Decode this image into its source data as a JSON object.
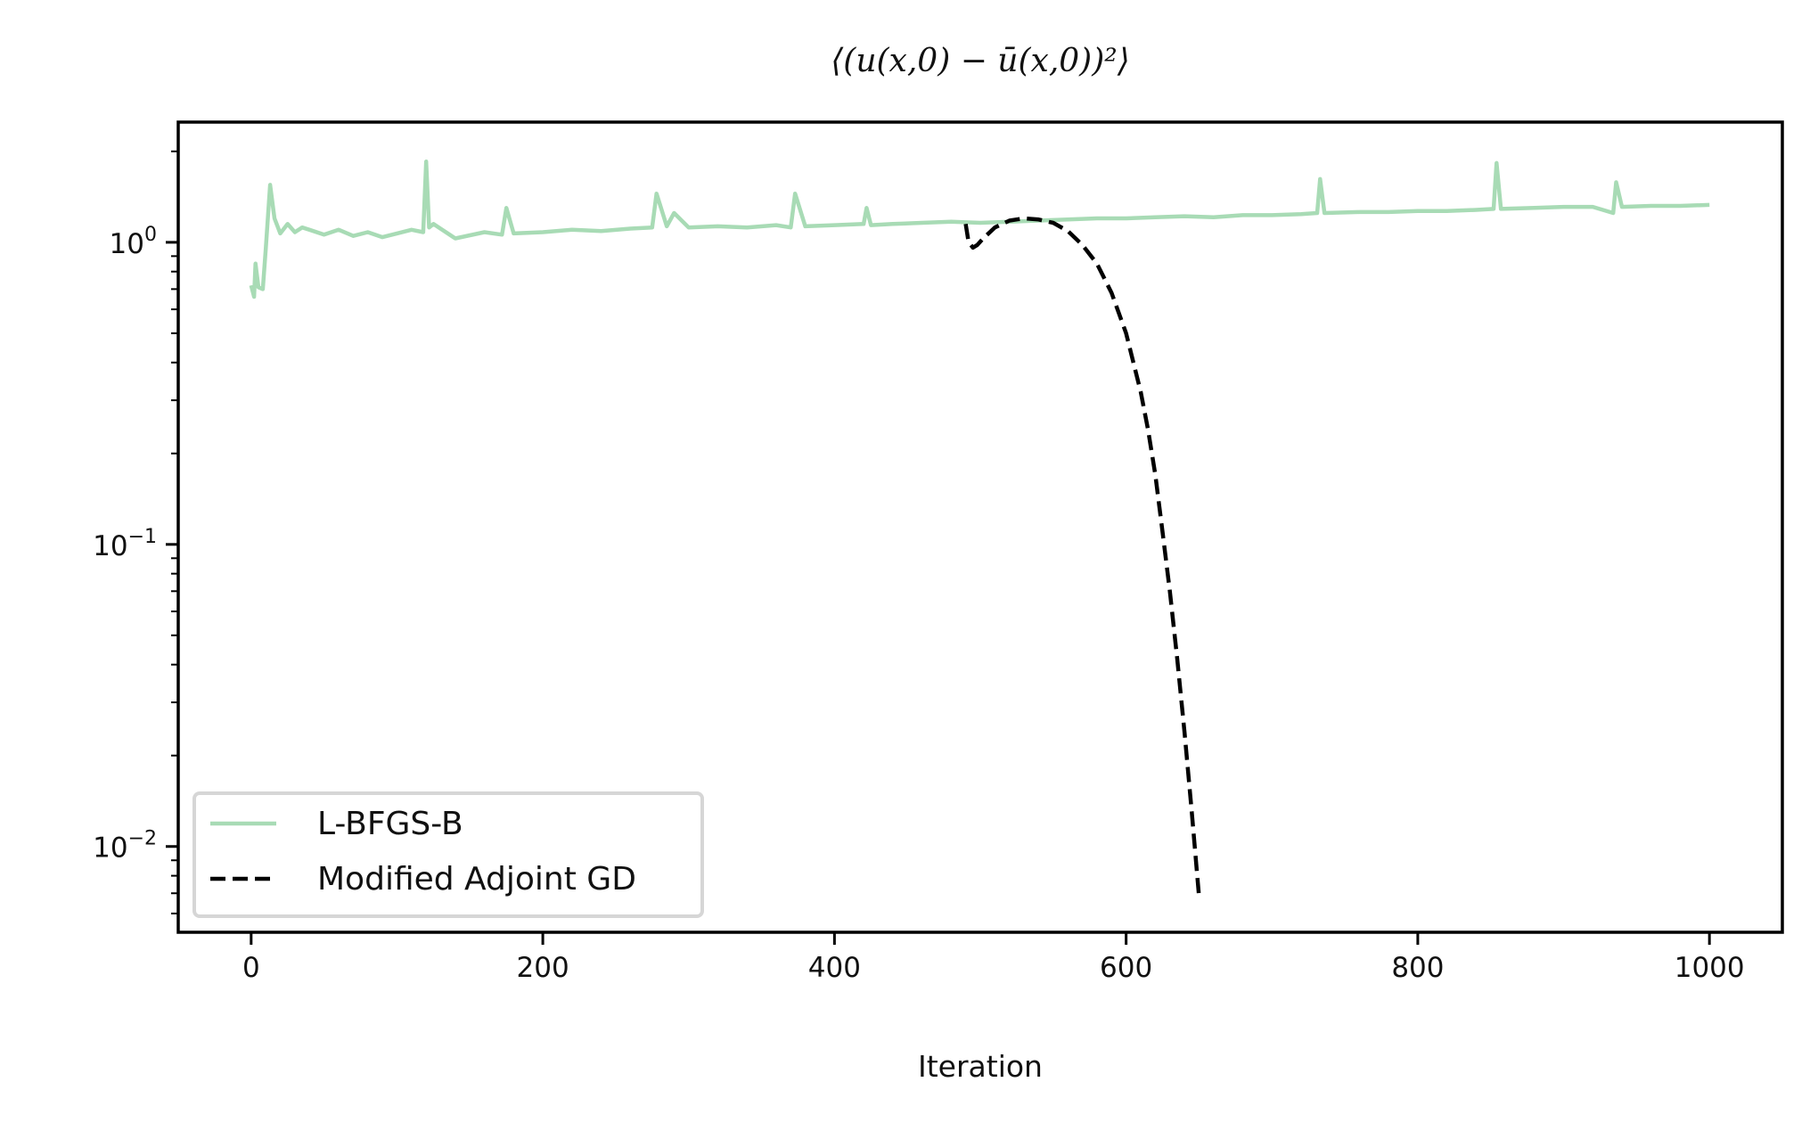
{
  "chart_data": {
    "type": "line",
    "title": "⟨(u(x,0) − ū(x,0))²⟩",
    "xlabel": "Iteration",
    "ylabel": "",
    "yscale": "log",
    "xlim": [
      -50,
      1050
    ],
    "ylim": [
      0.0052,
      2.5
    ],
    "xticks": [
      0,
      200,
      400,
      600,
      800,
      1000
    ],
    "xtick_labels": [
      "0",
      "200",
      "400",
      "600",
      "800",
      "1000"
    ],
    "yticks": [
      1,
      0.1,
      0.01
    ],
    "ytick_base": "10",
    "ytick_exponents": [
      "0",
      "−1",
      "−2"
    ],
    "grid": false,
    "legend_position": "lower-left",
    "series": [
      {
        "name": "L-BFGS-B",
        "color": "#a8dbb5",
        "style": "solid",
        "x": [
          0,
          2,
          3,
          5,
          8,
          10,
          13,
          16,
          20,
          25,
          30,
          35,
          40,
          50,
          60,
          70,
          80,
          90,
          100,
          110,
          118,
          120,
          122,
          125,
          140,
          160,
          172,
          175,
          180,
          200,
          220,
          240,
          260,
          275,
          278,
          285,
          290,
          300,
          320,
          340,
          360,
          370,
          373,
          380,
          400,
          420,
          422,
          425,
          440,
          460,
          480,
          500,
          520,
          540,
          560,
          580,
          600,
          620,
          640,
          660,
          680,
          700,
          720,
          731,
          733,
          736,
          760,
          780,
          800,
          820,
          840,
          852,
          854,
          857,
          880,
          900,
          920,
          934,
          936,
          940,
          960,
          980,
          1000
        ],
        "y": [
          0.72,
          0.66,
          0.85,
          0.71,
          0.7,
          0.95,
          1.55,
          1.2,
          1.07,
          1.15,
          1.08,
          1.12,
          1.1,
          1.06,
          1.1,
          1.05,
          1.08,
          1.04,
          1.07,
          1.1,
          1.08,
          1.85,
          1.12,
          1.15,
          1.03,
          1.08,
          1.06,
          1.3,
          1.07,
          1.08,
          1.1,
          1.09,
          1.11,
          1.12,
          1.45,
          1.13,
          1.25,
          1.12,
          1.13,
          1.12,
          1.14,
          1.12,
          1.45,
          1.13,
          1.14,
          1.15,
          1.3,
          1.14,
          1.15,
          1.16,
          1.17,
          1.16,
          1.17,
          1.18,
          1.19,
          1.2,
          1.2,
          1.21,
          1.22,
          1.21,
          1.23,
          1.23,
          1.24,
          1.25,
          1.62,
          1.25,
          1.26,
          1.26,
          1.27,
          1.27,
          1.28,
          1.29,
          1.83,
          1.29,
          1.3,
          1.31,
          1.31,
          1.25,
          1.58,
          1.31,
          1.32,
          1.32,
          1.33
        ]
      },
      {
        "name": "Modified Adjoint GD",
        "color": "#000000",
        "style": "dashed",
        "x": [
          490,
          492,
          495,
          498,
          502,
          510,
          520,
          530,
          540,
          550,
          560,
          570,
          580,
          590,
          600,
          610,
          615,
          620,
          625,
          630,
          635,
          640,
          645,
          650
        ],
        "y": [
          1.15,
          1.0,
          0.96,
          0.98,
          1.03,
          1.12,
          1.18,
          1.2,
          1.19,
          1.16,
          1.09,
          0.98,
          0.85,
          0.68,
          0.5,
          0.32,
          0.24,
          0.17,
          0.11,
          0.07,
          0.042,
          0.024,
          0.013,
          0.0068
        ]
      }
    ]
  }
}
